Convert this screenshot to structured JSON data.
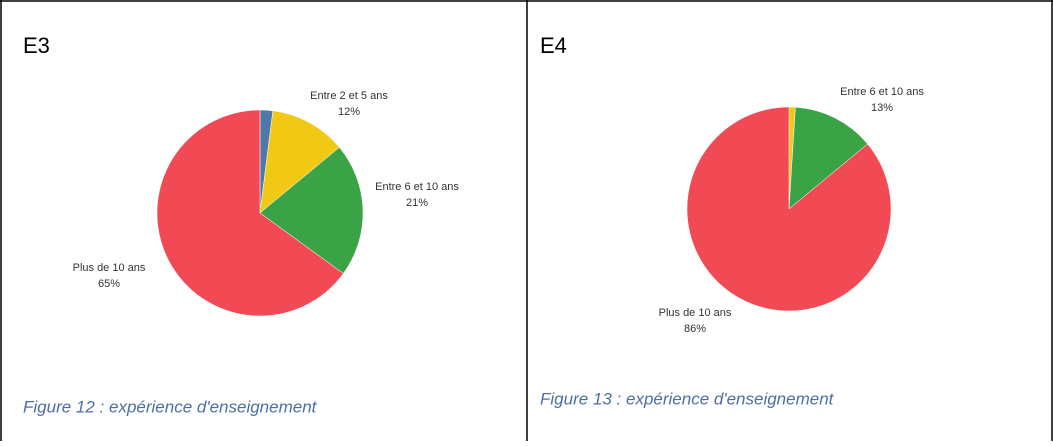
{
  "cells": [
    {
      "heading": "E3",
      "caption": "Figure 12 : expérience d'enseignement"
    },
    {
      "heading": "E4",
      "caption": "Figure 13 : expérience d'enseignement"
    }
  ],
  "chart_data": [
    {
      "type": "pie",
      "categories": [
        null,
        "Entre 2 et 5 ans",
        "Entre 6 et 10 ans",
        "Plus de 10 ans"
      ],
      "values": [
        2,
        12,
        21,
        65
      ],
      "value_labels": [
        null,
        "12%",
        "21%",
        "65%"
      ],
      "colors": [
        "#4e79a7",
        "#f1c915",
        "#3aa346",
        "#f24a55"
      ]
    },
    {
      "type": "pie",
      "categories": [
        null,
        "Entre 6 et 10 ans",
        "Plus de 10 ans"
      ],
      "values": [
        1,
        13,
        86
      ],
      "value_labels": [
        null,
        "13%",
        "86%"
      ],
      "colors": [
        "#f1c915",
        "#3aa346",
        "#f24a55"
      ]
    }
  ]
}
